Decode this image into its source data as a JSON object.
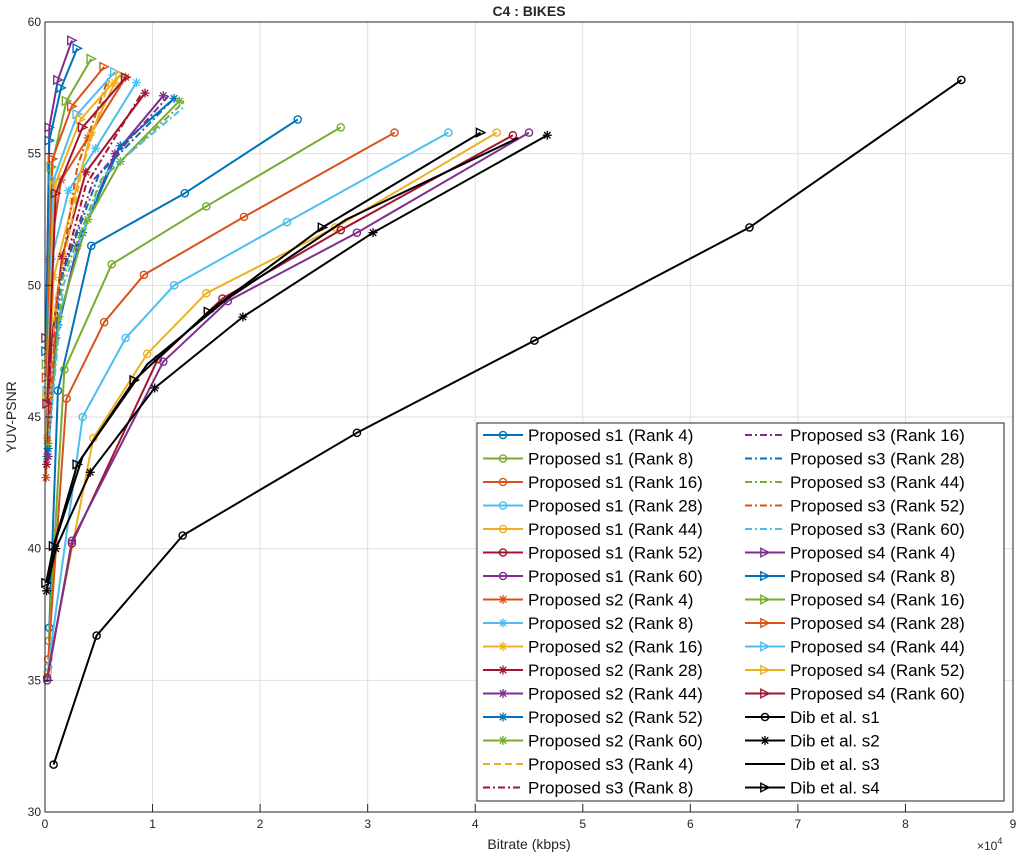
{
  "chart_data": {
    "type": "line",
    "title": "C4 : BIKES",
    "xlabel": "Bitrate (kbps)",
    "ylabel": "YUV-PSNR",
    "x_multiplier_label": "×10",
    "x_multiplier_exponent": "4",
    "xlim": [
      0,
      90000
    ],
    "ylim": [
      30,
      60
    ],
    "xticks": [
      0,
      10000,
      20000,
      30000,
      40000,
      50000,
      60000,
      70000,
      80000,
      90000
    ],
    "xtick_labels": [
      "0",
      "1",
      "2",
      "3",
      "4",
      "5",
      "6",
      "7",
      "8",
      "9"
    ],
    "yticks": [
      30,
      35,
      40,
      45,
      50,
      55,
      60
    ],
    "ytick_labels": [
      "30",
      "35",
      "40",
      "45",
      "50",
      "55",
      "60"
    ],
    "grid": true,
    "legend_position": "bottom-right",
    "series": [
      {
        "name": "Proposed s1 (Rank 4)",
        "color": "#0072BD",
        "marker": "o",
        "dash": "solid",
        "x": [
          400,
          1200,
          4300,
          13000,
          23500
        ],
        "y": [
          37,
          46,
          51.5,
          53.5,
          56.3
        ]
      },
      {
        "name": "Proposed s1 (Rank 8)",
        "color": "#77AC30",
        "marker": "o",
        "dash": "solid",
        "x": [
          350,
          1800,
          6200,
          15000,
          27500
        ],
        "y": [
          36.5,
          46.8,
          50.8,
          53,
          56
        ]
      },
      {
        "name": "Proposed s1 (Rank 16)",
        "color": "#D95319",
        "marker": "o",
        "dash": "solid",
        "x": [
          300,
          2000,
          5500,
          9200,
          18500,
          32500
        ],
        "y": [
          35.8,
          45.7,
          48.6,
          50.4,
          52.6,
          55.8
        ]
      },
      {
        "name": "Proposed s1 (Rank 28)",
        "color": "#4DBEEE",
        "marker": "o",
        "dash": "solid",
        "x": [
          300,
          3500,
          7500,
          12000,
          22500,
          37500
        ],
        "y": [
          35.5,
          45,
          48,
          50,
          52.4,
          55.8
        ]
      },
      {
        "name": "Proposed s1 (Rank 44)",
        "color": "#EDB120",
        "marker": "o",
        "dash": "solid",
        "x": [
          250,
          4500,
          9500,
          15000,
          27000,
          42000
        ],
        "y": [
          35.3,
          44.2,
          47.4,
          49.7,
          52.2,
          55.8
        ]
      },
      {
        "name": "Proposed s1 (Rank 52)",
        "color": "#A2142F",
        "marker": "o",
        "dash": "solid",
        "x": [
          200,
          2500,
          10500,
          16500,
          27500,
          43500
        ],
        "y": [
          35.1,
          40.2,
          47.2,
          49.5,
          52.1,
          55.7
        ]
      },
      {
        "name": "Proposed s1 (Rank 60)",
        "color": "#7E2F8E",
        "marker": "o",
        "dash": "solid",
        "x": [
          200,
          2500,
          11000,
          17000,
          29000,
          45000
        ],
        "y": [
          35,
          40.3,
          47.1,
          49.4,
          52,
          55.8
        ]
      },
      {
        "name": "Proposed s2 (Rank 4)",
        "color": "#D95319",
        "marker": "*",
        "dash": "solid",
        "x": [
          100,
          400,
          1500,
          4000,
          7500
        ],
        "y": [
          42.7,
          51,
          54,
          55.6,
          57.9
        ]
      },
      {
        "name": "Proposed s2 (Rank 8)",
        "color": "#4DBEEE",
        "marker": "*",
        "dash": "solid",
        "x": [
          150,
          600,
          2200,
          4700,
          8500
        ],
        "y": [
          43.5,
          51,
          53.6,
          55.2,
          57.7
        ]
      },
      {
        "name": "Proposed s2 (Rank 16)",
        "color": "#EDB120",
        "marker": "*",
        "dash": "solid",
        "x": [
          200,
          800,
          2600,
          4300,
          6500
        ],
        "y": [
          44.2,
          50.3,
          53.2,
          55.8,
          57.7
        ]
      },
      {
        "name": "Proposed s2 (Rank 28)",
        "color": "#A2142F",
        "marker": "*",
        "dash": "solid",
        "x": [
          150,
          600,
          1600,
          3800,
          9300
        ],
        "y": [
          43.2,
          47.8,
          51.1,
          54.3,
          57.3
        ]
      },
      {
        "name": "Proposed s2 (Rank 44)",
        "color": "#7E2F8E",
        "marker": "*",
        "dash": "solid",
        "x": [
          300,
          1000,
          3000,
          6500,
          11000
        ],
        "y": [
          43.5,
          48,
          51.5,
          55,
          57.2
        ]
      },
      {
        "name": "Proposed s2 (Rank 52)",
        "color": "#0072BD",
        "marker": "*",
        "dash": "solid",
        "x": [
          300,
          1200,
          3500,
          7000,
          12000
        ],
        "y": [
          43.8,
          48.5,
          52,
          55.3,
          57.1
        ]
      },
      {
        "name": "Proposed s2 (Rank 60)",
        "color": "#77AC30",
        "marker": "*",
        "dash": "solid",
        "x": [
          300,
          1300,
          4000,
          7000,
          12500
        ],
        "y": [
          44,
          48.8,
          52.5,
          54.7,
          57
        ]
      },
      {
        "name": "Proposed s3 (Rank 4)",
        "color": "#EDB120",
        "marker": "",
        "dash": "dash",
        "x": [
          300,
          1000,
          3500,
          6000
        ],
        "y": [
          44,
          49.5,
          54.5,
          57.8
        ]
      },
      {
        "name": "Proposed s3 (Rank 8)",
        "color": "#A2142F",
        "marker": "",
        "dash": "dashdot",
        "x": [
          300,
          1200,
          3800,
          9000
        ],
        "y": [
          44,
          49.8,
          53.8,
          57.3
        ]
      },
      {
        "name": "Proposed s3 (Rank 16)",
        "color": "#7E2F8E",
        "marker": "",
        "dash": "dashdot",
        "x": [
          300,
          1300,
          4500,
          11500
        ],
        "y": [
          44,
          50,
          54,
          57.2
        ]
      },
      {
        "name": "Proposed s3 (Rank 28)",
        "color": "#0072BD",
        "marker": "",
        "dash": "dashdot",
        "x": [
          400,
          1500,
          5000,
          12000
        ],
        "y": [
          44.5,
          50.3,
          54.2,
          57.1
        ]
      },
      {
        "name": "Proposed s3 (Rank 44)",
        "color": "#77AC30",
        "marker": "",
        "dash": "dashdot",
        "x": [
          400,
          1600,
          5200,
          13000
        ],
        "y": [
          44.5,
          50.2,
          54,
          57
        ]
      },
      {
        "name": "Proposed s3 (Rank 52)",
        "color": "#D95319",
        "marker": "",
        "dash": "dashdot",
        "x": [
          350,
          1100,
          3000,
          6000
        ],
        "y": [
          44,
          49.5,
          54.5,
          58
        ]
      },
      {
        "name": "Proposed s3 (Rank 60)",
        "color": "#4DBEEE",
        "marker": "",
        "dash": "dashdot",
        "x": [
          400,
          1700,
          5500,
          13000
        ],
        "y": [
          44.3,
          50,
          54.2,
          56.8
        ]
      },
      {
        "name": "Proposed s4 (Rank 4)",
        "color": "#7E2F8E",
        "marker": ">",
        "dash": "solid",
        "x": [
          100,
          400,
          1200,
          2500
        ],
        "y": [
          48,
          56,
          57.8,
          59.3
        ]
      },
      {
        "name": "Proposed s4 (Rank 8)",
        "color": "#0072BD",
        "marker": ">",
        "dash": "solid",
        "x": [
          100,
          400,
          1500,
          3000
        ],
        "y": [
          47.5,
          55.5,
          57.5,
          59
        ]
      },
      {
        "name": "Proposed s4 (Rank 16)",
        "color": "#77AC30",
        "marker": ">",
        "dash": "solid",
        "x": [
          150,
          600,
          2000,
          4300
        ],
        "y": [
          47,
          54.5,
          57,
          58.6
        ]
      },
      {
        "name": "Proposed s4 (Rank 28)",
        "color": "#D95319",
        "marker": ">",
        "dash": "solid",
        "x": [
          150,
          700,
          2500,
          5500
        ],
        "y": [
          46.5,
          54.8,
          56.8,
          58.3
        ]
      },
      {
        "name": "Proposed s4 (Rank 44)",
        "color": "#4DBEEE",
        "marker": ">",
        "dash": "solid",
        "x": [
          200,
          800,
          3000,
          6500
        ],
        "y": [
          46,
          54,
          56.5,
          58.1
        ]
      },
      {
        "name": "Proposed s4 (Rank 52)",
        "color": "#EDB120",
        "marker": ">",
        "dash": "solid",
        "x": [
          200,
          900,
          3300,
          7000
        ],
        "y": [
          45.8,
          53.8,
          56.3,
          58
        ]
      },
      {
        "name": "Proposed s4 (Rank 60)",
        "color": "#A2142F",
        "marker": ">",
        "dash": "solid",
        "x": [
          200,
          1000,
          3500,
          7500
        ],
        "y": [
          45.5,
          53.5,
          56,
          57.9
        ]
      },
      {
        "name": "Dib et al. s1",
        "color": "#000000",
        "marker": "o",
        "dash": "solid",
        "x": [
          800,
          4800,
          12800,
          29000,
          45500,
          65500,
          85200
        ],
        "y": [
          31.8,
          36.7,
          40.5,
          44.4,
          47.9,
          52.2,
          57.8
        ]
      },
      {
        "name": "Dib et al. s2",
        "color": "#000000",
        "marker": "*",
        "dash": "solid",
        "x": [
          150,
          1000,
          4200,
          10200,
          18400,
          30500,
          46700
        ],
        "y": [
          38.4,
          40,
          42.9,
          46.1,
          48.8,
          52,
          55.7
        ]
      },
      {
        "name": "Dib et al. s3",
        "color": "#000000",
        "marker": "",
        "dash": "solid",
        "x": [
          150,
          900,
          3500,
          9500,
          17000,
          28000,
          44000
        ],
        "y": [
          38.7,
          40.2,
          43.5,
          47,
          49.5,
          52.5,
          55.6
        ]
      },
      {
        "name": "Dib et al. s4",
        "color": "#000000",
        "marker": ">",
        "dash": "solid",
        "x": [
          100,
          800,
          3000,
          8300,
          15200,
          25800,
          40500
        ],
        "y": [
          38.7,
          40.1,
          43.2,
          46.4,
          49,
          52.2,
          55.8
        ]
      }
    ]
  }
}
